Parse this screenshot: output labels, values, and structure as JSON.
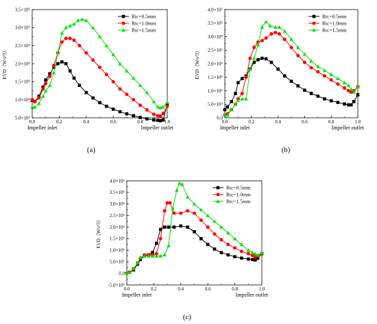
{
  "colors": {
    "s05": "#000000",
    "s10": "#ff0000",
    "s15": "#00e000"
  },
  "chart_data": [
    {
      "type": "line",
      "panel_label": "(a)",
      "ylabel": "EVD（W/s³3）",
      "xlabel_left": "Impeller inlet",
      "xlabel_right": "Impeller outlet",
      "xlim": [
        0.0,
        1.0
      ],
      "ylim": [
        500000,
        3500000
      ],
      "xticks": [
        "0.0",
        "0.2",
        "0.4",
        "0.6",
        "0.8",
        "1.0"
      ],
      "yticks": [
        "5.0×10⁵",
        "1.0×10⁶",
        "1.5×10⁶",
        "2.0×10⁶",
        "2.5×10⁶",
        "3.0×10⁶",
        "3.5×10⁶"
      ],
      "ytick_values": [
        500000,
        1000000,
        1500000,
        2000000,
        2500000,
        3000000,
        3500000
      ],
      "legend": [
        "Rtc=0.5mm",
        "Rtc=1.0mm",
        "Rtc=1.5mm"
      ],
      "series": [
        {
          "name": "Rtc=0.5mm",
          "color": "s05",
          "marker": "square",
          "x": [
            0,
            0.02,
            0.05,
            0.08,
            0.1,
            0.13,
            0.16,
            0.19,
            0.22,
            0.25,
            0.28,
            0.31,
            0.35,
            0.4,
            0.45,
            0.5,
            0.55,
            0.6,
            0.65,
            0.7,
            0.75,
            0.8,
            0.85,
            0.9,
            0.93,
            0.95,
            0.97,
            1.0
          ],
          "y": [
            980000,
            950000,
            1100000,
            1350000,
            1550000,
            1720000,
            1900000,
            2000000,
            2050000,
            2000000,
            1800000,
            1600000,
            1400000,
            1200000,
            1050000,
            920000,
            820000,
            740000,
            670000,
            610000,
            560000,
            510000,
            470000,
            440000,
            430000,
            420000,
            440000,
            880000
          ]
        },
        {
          "name": "Rtc=1.0mm",
          "color": "s10",
          "marker": "circle",
          "x": [
            0,
            0.02,
            0.05,
            0.08,
            0.1,
            0.13,
            0.16,
            0.19,
            0.22,
            0.25,
            0.28,
            0.31,
            0.35,
            0.4,
            0.45,
            0.5,
            0.55,
            0.6,
            0.65,
            0.7,
            0.75,
            0.8,
            0.85,
            0.9,
            0.93,
            0.95,
            0.97,
            1.0
          ],
          "y": [
            1000000,
            950000,
            1050000,
            1300000,
            1450000,
            1650000,
            1950000,
            2300000,
            2600000,
            2700000,
            2700000,
            2650000,
            2500000,
            2300000,
            2100000,
            1900000,
            1700000,
            1500000,
            1300000,
            1150000,
            1000000,
            850000,
            720000,
            600000,
            560000,
            550000,
            620000,
            820000
          ]
        },
        {
          "name": "Rtc=1.5mm",
          "color": "s15",
          "marker": "triangle",
          "x": [
            0,
            0.02,
            0.05,
            0.08,
            0.1,
            0.13,
            0.16,
            0.19,
            0.22,
            0.25,
            0.28,
            0.31,
            0.34,
            0.37,
            0.4,
            0.45,
            0.5,
            0.55,
            0.6,
            0.65,
            0.7,
            0.75,
            0.8,
            0.85,
            0.9,
            0.93,
            0.95,
            0.97,
            1.0
          ],
          "y": [
            800000,
            800000,
            900000,
            1100000,
            1250000,
            1400000,
            1750000,
            2300000,
            2850000,
            3000000,
            3050000,
            3100000,
            3200000,
            3230000,
            3200000,
            3000000,
            2750000,
            2500000,
            2250000,
            2000000,
            1800000,
            1600000,
            1400000,
            1200000,
            950000,
            800000,
            780000,
            800000,
            930000
          ]
        }
      ]
    },
    {
      "type": "line",
      "panel_label": "(b)",
      "ylabel": "EVD（W/s³3）",
      "xlabel_left": "Impeller inlet",
      "xlabel_right": "Impeller outlet",
      "xlim": [
        0.0,
        1.0
      ],
      "ylim": [
        0,
        4000000
      ],
      "xticks": [
        "0.0",
        "0.2",
        "0.4",
        "0.6",
        "0.8",
        "1.0"
      ],
      "yticks": [
        "0.0",
        "5.0×10⁵",
        "1.0×10⁶",
        "1.5×10⁶",
        "2.0×10⁶",
        "2.5×10⁶",
        "3.0×10⁶",
        "3.5×10⁶",
        "4.0×10⁶"
      ],
      "ytick_values": [
        0,
        500000,
        1000000,
        1500000,
        2000000,
        2500000,
        3000000,
        3500000,
        4000000
      ],
      "legend": [
        "Rtc=0.5mm",
        "Rtc=1.0mm",
        "Rtc=1.5mm"
      ],
      "series": [
        {
          "name": "Rtc=0.5mm",
          "color": "s05",
          "marker": "square",
          "x": [
            0,
            0.02,
            0.05,
            0.08,
            0.1,
            0.13,
            0.16,
            0.19,
            0.22,
            0.25,
            0.28,
            0.31,
            0.35,
            0.4,
            0.45,
            0.5,
            0.55,
            0.6,
            0.65,
            0.7,
            0.75,
            0.8,
            0.85,
            0.9,
            0.93,
            0.95,
            0.97,
            1.0
          ],
          "y": [
            300000,
            400000,
            600000,
            900000,
            1300000,
            1450000,
            1550000,
            1800000,
            2050000,
            2150000,
            2200000,
            2180000,
            2050000,
            1800000,
            1550000,
            1350000,
            1180000,
            1020000,
            900000,
            800000,
            700000,
            630000,
            570000,
            510000,
            480000,
            480000,
            600000,
            850000
          ]
        },
        {
          "name": "Rtc=1.0mm",
          "color": "s10",
          "marker": "circle",
          "x": [
            0,
            0.02,
            0.05,
            0.08,
            0.1,
            0.13,
            0.16,
            0.19,
            0.22,
            0.25,
            0.28,
            0.31,
            0.35,
            0.38,
            0.41,
            0.45,
            0.5,
            0.55,
            0.6,
            0.65,
            0.7,
            0.75,
            0.8,
            0.85,
            0.9,
            0.93,
            0.95,
            0.97,
            1.0
          ],
          "y": [
            100000,
            150000,
            300000,
            500000,
            700000,
            900000,
            1500000,
            2200000,
            2600000,
            2800000,
            2850000,
            2950000,
            3100000,
            3150000,
            3100000,
            2900000,
            2600000,
            2300000,
            2050000,
            1850000,
            1700000,
            1550000,
            1400000,
            1250000,
            1100000,
            1000000,
            950000,
            1000000,
            1150000
          ]
        },
        {
          "name": "Rtc=1.5mm",
          "color": "s15",
          "marker": "triangle",
          "x": [
            0,
            0.02,
            0.05,
            0.08,
            0.1,
            0.13,
            0.16,
            0.19,
            0.22,
            0.25,
            0.28,
            0.31,
            0.34,
            0.38,
            0.41,
            0.45,
            0.5,
            0.55,
            0.6,
            0.65,
            0.7,
            0.75,
            0.8,
            0.85,
            0.9,
            0.93,
            0.95,
            0.97,
            1.0
          ],
          "y": [
            100000,
            100000,
            300000,
            500000,
            650000,
            700000,
            700000,
            1800000,
            2200000,
            2700000,
            3350000,
            3550000,
            3400000,
            3350000,
            3350000,
            3200000,
            2900000,
            2600000,
            2350000,
            2100000,
            1900000,
            1750000,
            1600000,
            1450000,
            1300000,
            1200000,
            1050000,
            950000,
            1150000
          ]
        }
      ]
    },
    {
      "type": "line",
      "panel_label": "(c)",
      "ylabel": "EVD（W/s³3）",
      "xlabel_left": "Impeller inlet",
      "xlabel_right": "Impeller outlet",
      "xlim": [
        0.0,
        1.0
      ],
      "ylim": [
        -500000,
        4000000
      ],
      "xticks": [
        "0.0",
        "0.2",
        "0.4",
        "0.6",
        "0.8",
        "1.0"
      ],
      "yticks": [
        "-5.0×10⁵",
        "0.0",
        "5.0×10⁵",
        "1.0×10⁶",
        "1.5×10⁶",
        "2.0×10⁶",
        "2.5×10⁶",
        "3.0×10⁶",
        "3.5×10⁶",
        "4.0×10⁶"
      ],
      "ytick_values": [
        -500000,
        0,
        500000,
        1000000,
        1500000,
        2000000,
        2500000,
        3000000,
        3500000,
        4000000
      ],
      "legend": [
        "Rtc=0.5mm",
        "Rtc=1.0mm",
        "Rtc=1.5mm"
      ],
      "series": [
        {
          "name": "Rtc=0.5mm",
          "color": "s05",
          "marker": "square",
          "x": [
            0,
            0.02,
            0.05,
            0.08,
            0.1,
            0.13,
            0.16,
            0.19,
            0.22,
            0.25,
            0.28,
            0.31,
            0.35,
            0.4,
            0.45,
            0.5,
            0.55,
            0.6,
            0.65,
            0.7,
            0.75,
            0.8,
            0.85,
            0.9,
            0.93,
            0.95,
            0.97,
            1.0
          ],
          "y": [
            0,
            50000,
            150000,
            400000,
            600000,
            750000,
            800000,
            900000,
            1300000,
            1900000,
            2000000,
            2000000,
            2000000,
            2050000,
            2000000,
            1800000,
            1500000,
            1250000,
            1050000,
            900000,
            800000,
            720000,
            660000,
            620000,
            600000,
            580000,
            650000,
            850000
          ]
        },
        {
          "name": "Rtc=1.0mm",
          "color": "s10",
          "marker": "circle",
          "x": [
            0,
            0.02,
            0.05,
            0.08,
            0.1,
            0.13,
            0.16,
            0.19,
            0.22,
            0.25,
            0.28,
            0.3,
            0.32,
            0.35,
            0.4,
            0.45,
            0.5,
            0.55,
            0.6,
            0.65,
            0.7,
            0.75,
            0.8,
            0.85,
            0.9,
            0.93,
            0.95,
            0.97,
            1.0
          ],
          "y": [
            0,
            50000,
            200000,
            450000,
            650000,
            800000,
            800000,
            800000,
            850000,
            1500000,
            2700000,
            3050000,
            3050000,
            2600000,
            2600000,
            2700000,
            2600000,
            2300000,
            2000000,
            1700000,
            1450000,
            1250000,
            1100000,
            950000,
            850000,
            780000,
            720000,
            750000,
            850000
          ]
        },
        {
          "name": "Rtc=1.5mm",
          "color": "s15",
          "marker": "triangle",
          "x": [
            0,
            0.02,
            0.05,
            0.08,
            0.1,
            0.13,
            0.16,
            0.19,
            0.22,
            0.25,
            0.28,
            0.31,
            0.34,
            0.37,
            0.39,
            0.41,
            0.45,
            0.5,
            0.55,
            0.6,
            0.65,
            0.7,
            0.75,
            0.8,
            0.85,
            0.9,
            0.93,
            0.95,
            0.97,
            1.0
          ],
          "y": [
            0,
            50000,
            200000,
            450000,
            700000,
            750000,
            750000,
            750000,
            750000,
            750000,
            800000,
            1200000,
            2800000,
            3600000,
            3900000,
            3850000,
            3300000,
            3000000,
            2750000,
            2500000,
            2250000,
            2000000,
            1750000,
            1500000,
            1250000,
            1000000,
            900000,
            850000,
            800000,
            900000
          ]
        }
      ]
    }
  ]
}
